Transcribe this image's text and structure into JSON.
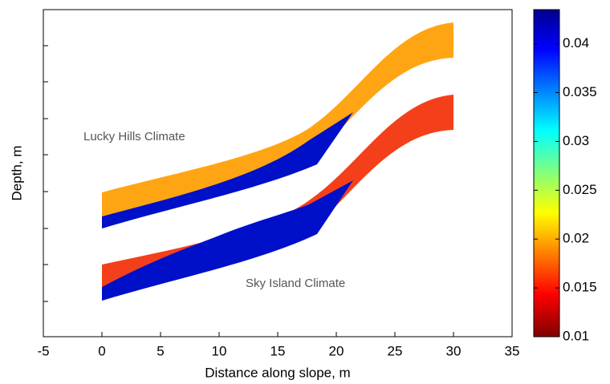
{
  "chart_data": {
    "type": "field",
    "xlabel": "Distance along slope, m",
    "ylabel": "Depth, m",
    "xlim": [
      -5,
      35
    ],
    "xticks": [
      -5,
      0,
      5,
      10,
      15,
      20,
      25,
      30,
      35
    ],
    "annotations": [
      "Lucky Hills Climate",
      "Sky Island Climate"
    ],
    "colorbar": {
      "clim": [
        0.01,
        0.0435
      ],
      "ticks": [
        0.01,
        0.015,
        0.02,
        0.025,
        0.03,
        0.035,
        0.04
      ]
    }
  }
}
